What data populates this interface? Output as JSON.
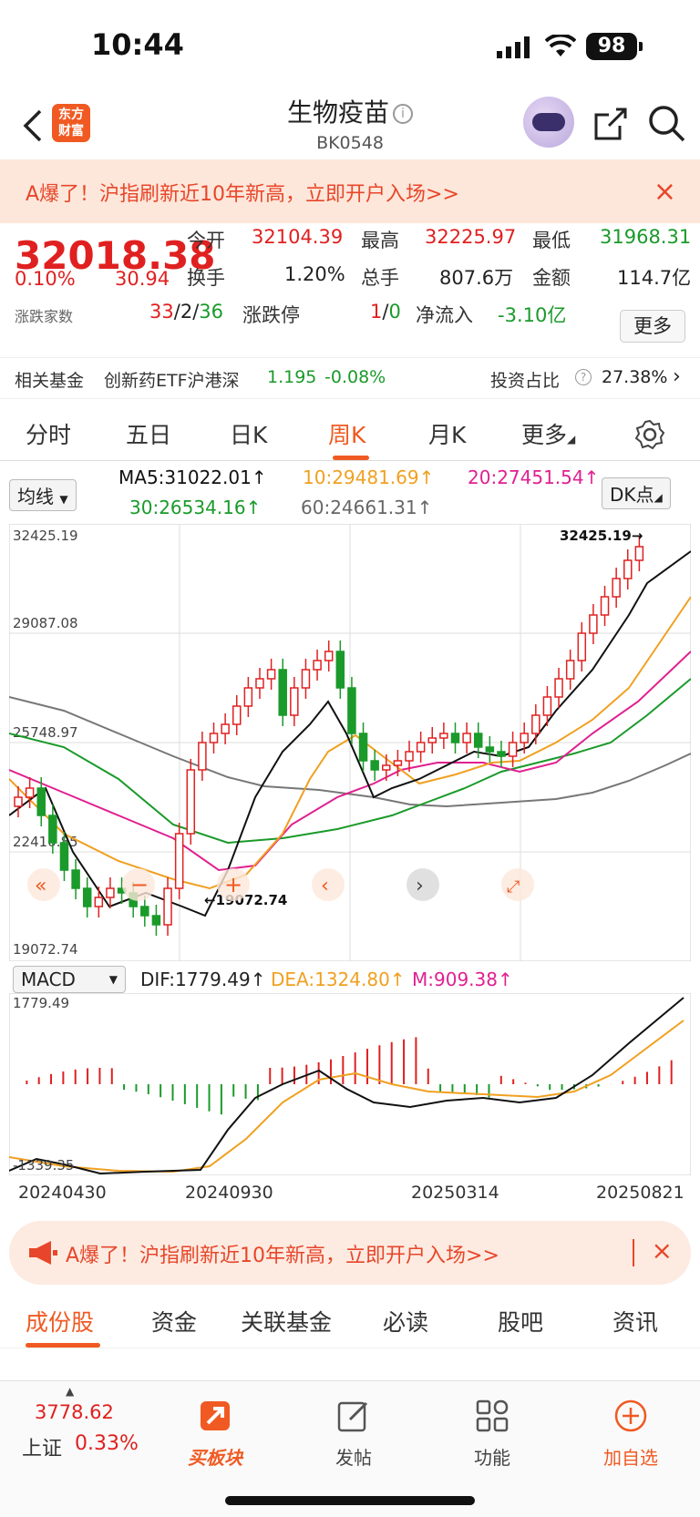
{
  "status": {
    "time": "10:44",
    "battery": "98"
  },
  "header": {
    "logo_line1": "东方",
    "logo_line2": "财富",
    "title": "生物疫苗",
    "code": "BK0548"
  },
  "banner": {
    "text": "A爆了！沪指刷新近10年新高，立即开户入场>>",
    "close": "×"
  },
  "quote": {
    "price": "32018.38",
    "change_pct": "0.10%",
    "change": "30.94",
    "open_label": "今开",
    "open": "32104.39",
    "high_label": "最高",
    "high": "32225.97",
    "low_label": "最低",
    "low": "31968.31",
    "turnover_label": "换手",
    "turnover": "1.20%",
    "volume_label": "总手",
    "volume": "807.6万",
    "amount_label": "金额",
    "amount": "114.7亿",
    "breadth_label": "涨跌家数",
    "up": "33",
    "flat": "2",
    "down": "36",
    "slash": "/",
    "limit_label": "涨跌停",
    "limit_up": "1",
    "limit_down": "0",
    "netflow_label": "净流入",
    "netflow": "-3.10亿",
    "more": "更多"
  },
  "fund": {
    "label": "相关基金",
    "name": "创新药ETF沪港深",
    "value": "1.195",
    "change": "-0.08%",
    "ratio_label": "投资占比",
    "ratio": "27.38%"
  },
  "tabs": [
    "分时",
    "五日",
    "日K",
    "周K",
    "月K",
    "更多"
  ],
  "ma": {
    "selector": "均线",
    "ma5": "MA5:31022.01↑",
    "ma10": "10:29481.69↑",
    "ma20": "20:27451.54↑",
    "ma30": "30:26534.16↑",
    "ma60": "60:24661.31↑",
    "dk": "DK点"
  },
  "kline": {
    "y_labels": [
      "32425.19",
      "29087.08",
      "25748.97",
      "22410.85",
      "19072.74"
    ],
    "max_label": "32425.19→",
    "min_label": "←19072.74"
  },
  "macd": {
    "selector": "MACD",
    "dif": "DIF:1779.49↑",
    "dea": "DEA:1324.80↑",
    "m": "M:909.38↑",
    "top": "1779.49",
    "bottom": "-1339.35"
  },
  "dates": [
    "20240430",
    "20240930",
    "20250314",
    "20250821"
  ],
  "bottom_tabs": [
    "成份股",
    "资金",
    "关联基金",
    "必读",
    "股吧",
    "资讯"
  ],
  "bottom_nav": {
    "index_value": "3778.62",
    "index_name": "上证",
    "index_change": "0.33%",
    "buy": "买板块",
    "post": "发帖",
    "func": "功能",
    "add": "加自选"
  },
  "colors": {
    "up": "#e02020",
    "down": "#1a9a2a",
    "accent": "#f05a22",
    "ma5": "#111111",
    "ma10": "#f0a020",
    "ma20": "#e02090",
    "ma30": "#1a9a2a",
    "ma60": "#777777"
  }
}
